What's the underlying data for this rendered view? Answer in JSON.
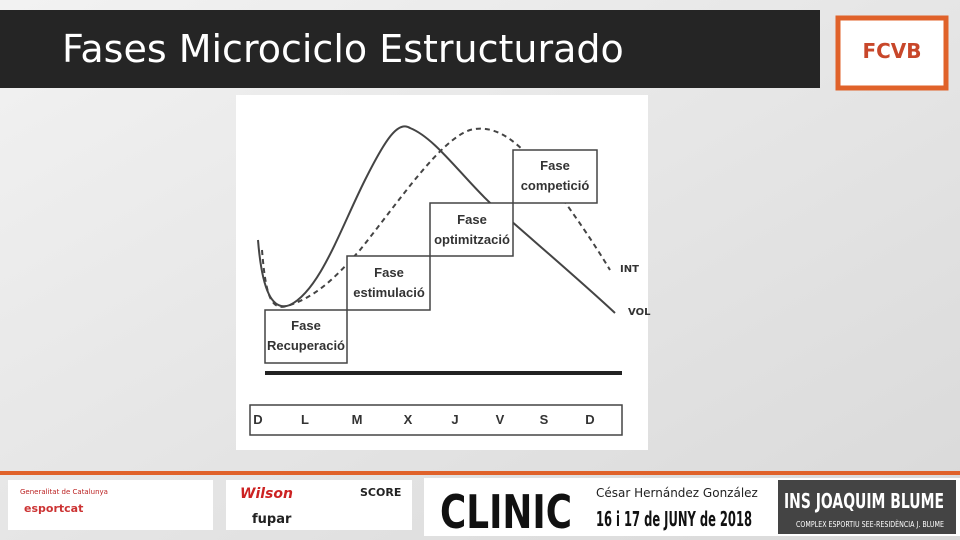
{
  "header": {
    "title": "Fases Microciclo Estructurado",
    "logo": "FCVB"
  },
  "diagram": {
    "phases": [
      {
        "line1": "Fase",
        "line2": "Recuperació"
      },
      {
        "line1": "Fase",
        "line2": "estimulació"
      },
      {
        "line1": "Fase",
        "line2": "optimització"
      },
      {
        "line1": "Fase",
        "line2": "competició"
      }
    ],
    "curve_labels": [
      "INT",
      "VOL"
    ],
    "days": [
      "D",
      "L",
      "M",
      "X",
      "J",
      "V",
      "S",
      "D"
    ]
  },
  "footer": {
    "author": "César Hernández González",
    "sponsors": [
      "Generalitat de Catalunya",
      "esportcat",
      "Wilson",
      "fupar",
      "SCORE"
    ],
    "event": "CLINIC",
    "dates": "16 i 17 de JUNY de 2018",
    "venue": "INS JOAQUIM BLUME",
    "venue_sub": "COMPLEX ESPORTIU SEE-RESIDÈNCIA J. BLUME"
  }
}
